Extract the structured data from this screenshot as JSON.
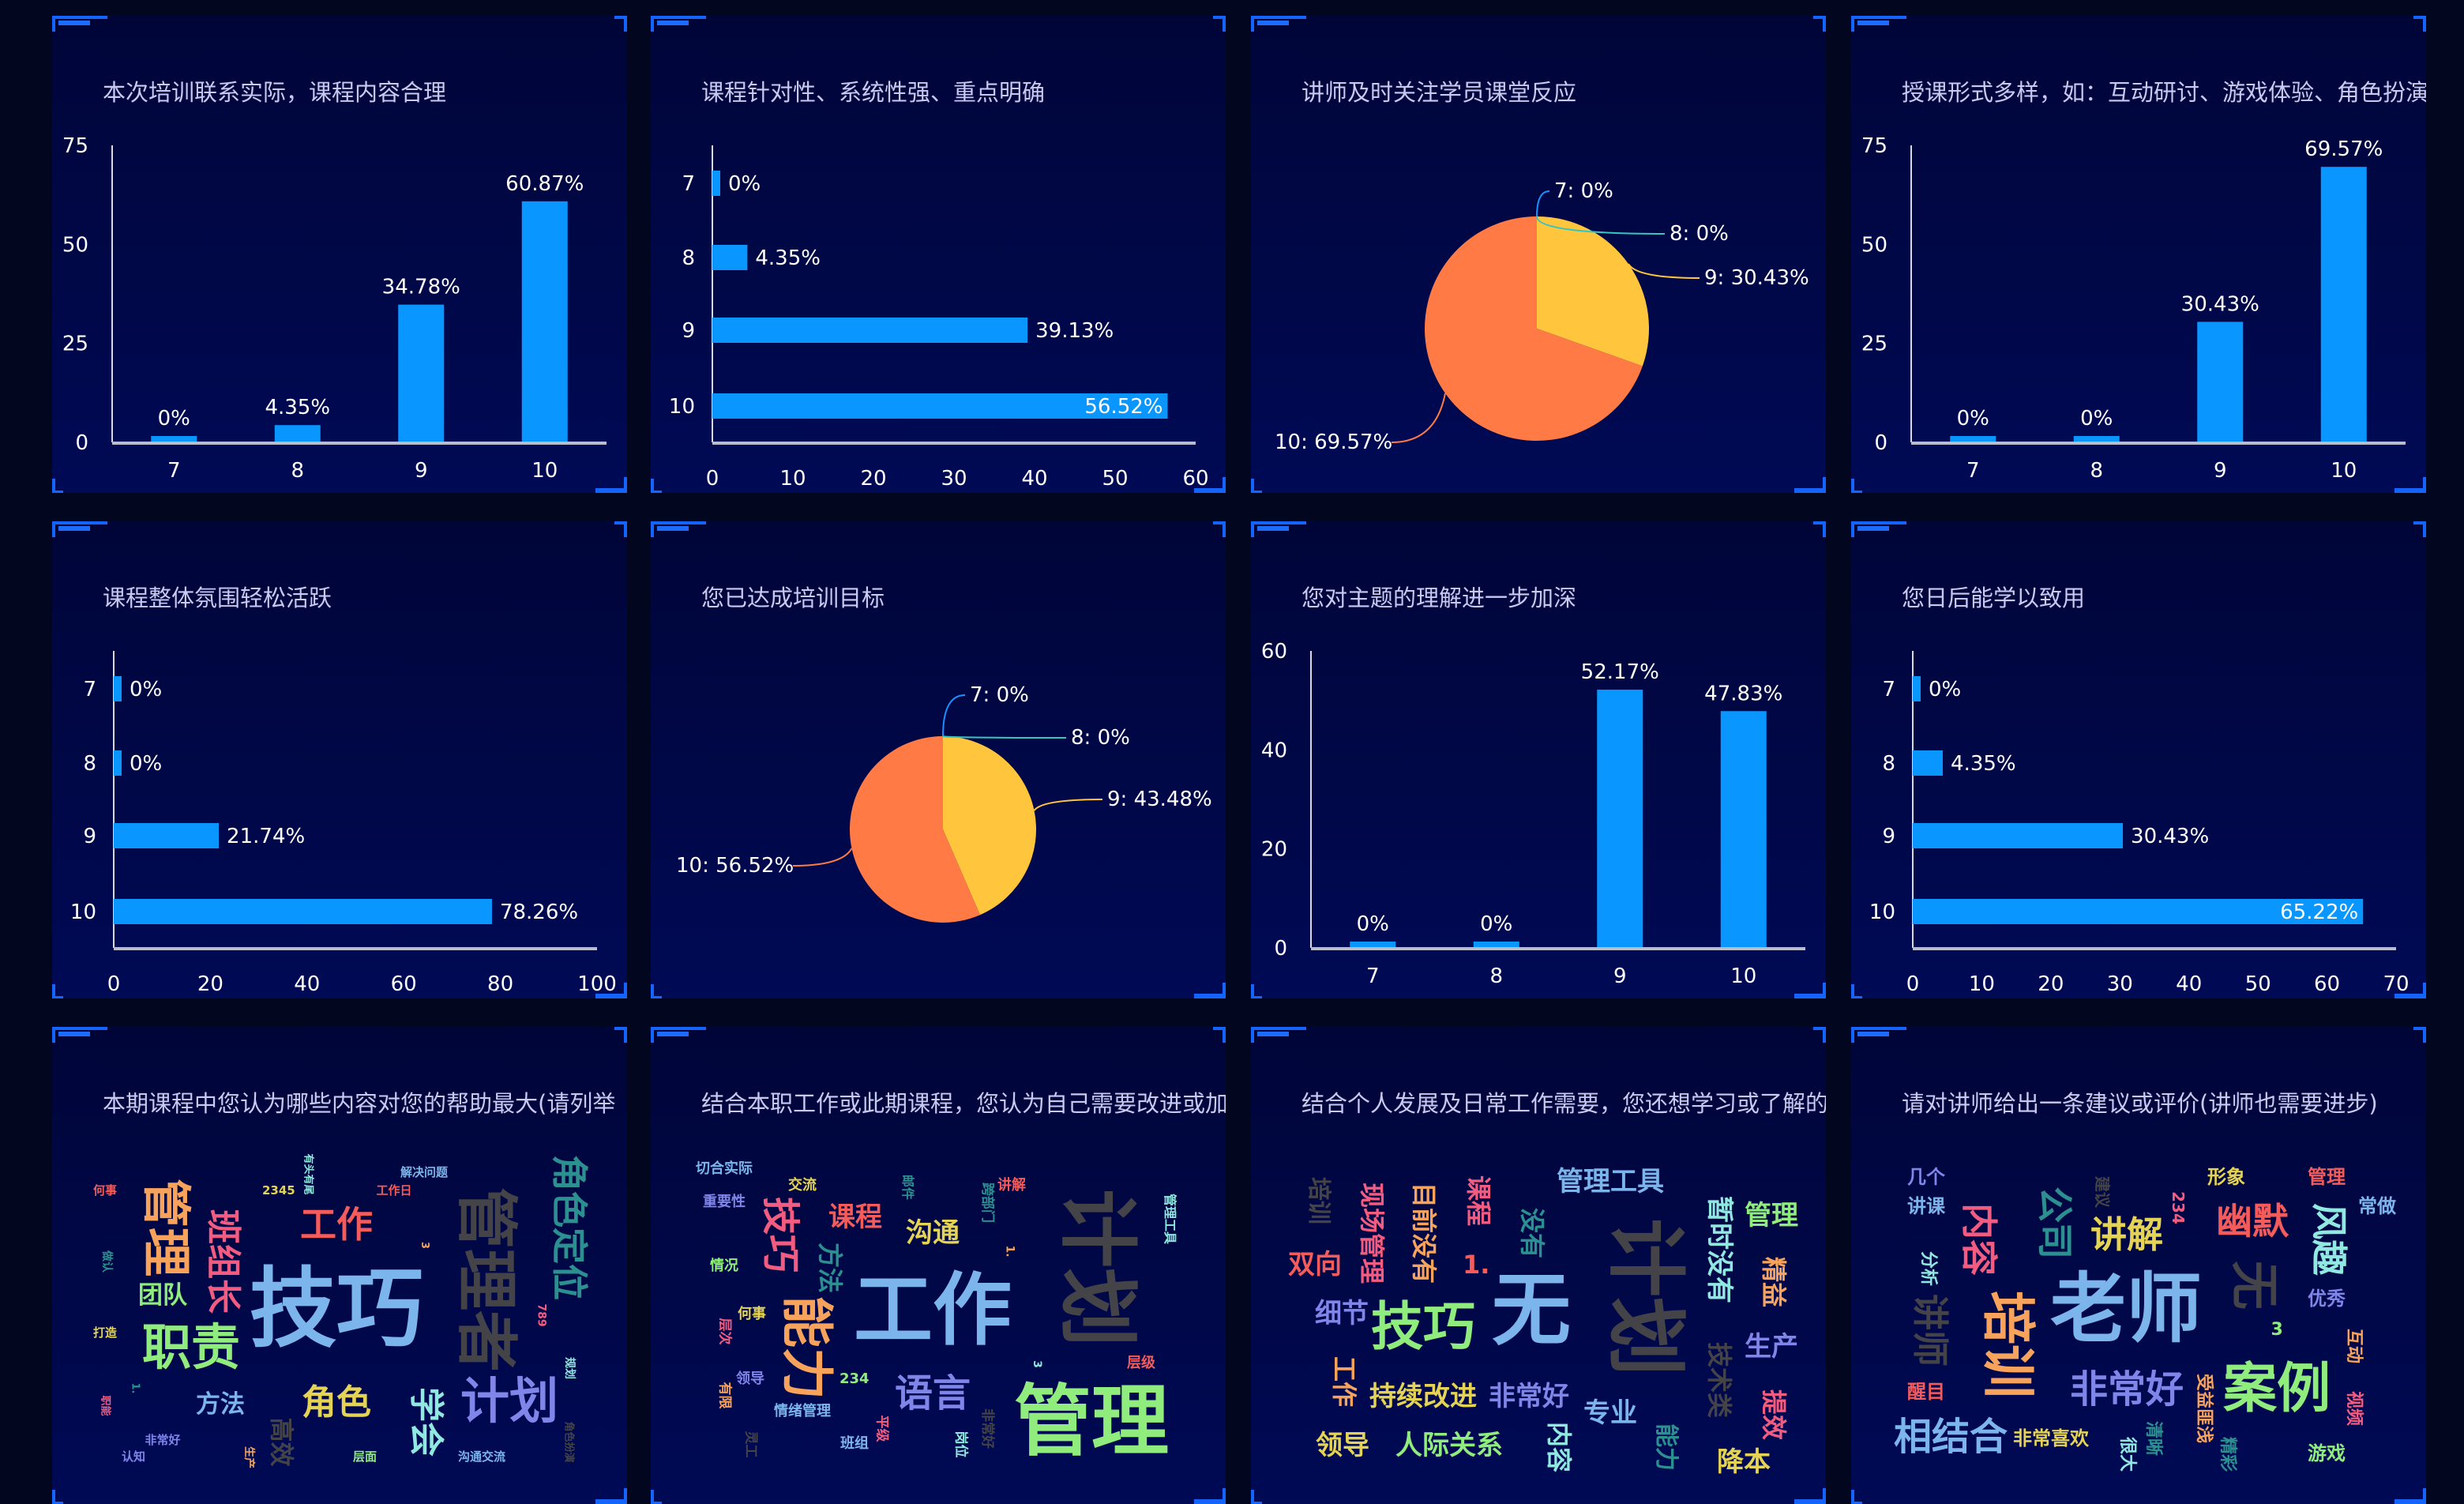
{
  "panels": [
    {
      "title": "本次培训联系实际，课程内容合理"
    },
    {
      "title": "课程针对性、系统性强、重点明确"
    },
    {
      "title": "讲师及时关注学员课堂反应"
    },
    {
      "title": "授课形式多样，如：互动研讨、游戏体验、角色扮演"
    },
    {
      "title": "课程整体氛围轻松活跃"
    },
    {
      "title": "您已达成培训目标"
    },
    {
      "title": "您对主题的理解进一步加深"
    },
    {
      "title": "您日后能学以致用"
    },
    {
      "title": "本期课程中您认为哪些内容对您的帮助最大(请列举"
    },
    {
      "title": "结合本职工作或此期课程，您认为自己需要改进或加"
    },
    {
      "title": "结合个人发展及日常工作需要，您还想学习或了解的"
    },
    {
      "title": "请对讲师给出一条建议或评价(讲师也需要进步)"
    }
  ],
  "colors": {
    "bar": "#0a96ff",
    "pie": {
      "7": "#1a90ff",
      "8": "#36c6c0",
      "9": "#ffc53d",
      "10": "#ff7a45"
    },
    "text": "#ffffff",
    "title": "#c9c9f2"
  },
  "chart_data": [
    {
      "type": "bar",
      "orientation": "vertical",
      "categories": [
        "7",
        "8",
        "9",
        "10"
      ],
      "values": [
        0,
        4.35,
        34.78,
        60.87
      ],
      "labels": [
        "0%",
        "4.35%",
        "34.78%",
        "60.87%"
      ],
      "ylim": [
        0,
        75
      ],
      "yticks": [
        "0",
        "25",
        "50",
        "75"
      ]
    },
    {
      "type": "bar",
      "orientation": "horizontal",
      "categories": [
        "7",
        "8",
        "9",
        "10"
      ],
      "values": [
        0,
        4.35,
        39.13,
        56.52
      ],
      "labels": [
        "0%",
        "4.35%",
        "39.13%",
        "56.52%"
      ],
      "xlim": [
        0,
        60
      ],
      "xticks": [
        "0",
        "10",
        "20",
        "30",
        "40",
        "50",
        "60"
      ]
    },
    {
      "type": "pie",
      "categories": [
        "7",
        "8",
        "9",
        "10"
      ],
      "values": [
        0,
        0,
        30.43,
        69.57
      ],
      "labels": [
        "7: 0%",
        "8: 0%",
        "9: 30.43%",
        "10: 69.57%"
      ]
    },
    {
      "type": "bar",
      "orientation": "vertical",
      "categories": [
        "7",
        "8",
        "9",
        "10"
      ],
      "values": [
        0,
        0,
        30.43,
        69.57
      ],
      "labels": [
        "0%",
        "0%",
        "30.43%",
        "69.57%"
      ],
      "ylim": [
        0,
        75
      ],
      "yticks": [
        "0",
        "25",
        "50",
        "75"
      ]
    },
    {
      "type": "bar",
      "orientation": "horizontal",
      "categories": [
        "7",
        "8",
        "9",
        "10"
      ],
      "values": [
        0,
        0,
        21.74,
        78.26
      ],
      "labels": [
        "0%",
        "0%",
        "21.74%",
        "78.26%"
      ],
      "xlim": [
        0,
        100
      ],
      "xticks": [
        "0",
        "20",
        "40",
        "60",
        "80",
        "100"
      ]
    },
    {
      "type": "pie",
      "categories": [
        "7",
        "8",
        "9",
        "10"
      ],
      "values": [
        0,
        0,
        43.48,
        56.52
      ],
      "labels": [
        "7: 0%",
        "8: 0%",
        "9: 43.48%",
        "10: 56.52%"
      ]
    },
    {
      "type": "bar",
      "orientation": "vertical",
      "categories": [
        "7",
        "8",
        "9",
        "10"
      ],
      "values": [
        0,
        0,
        52.17,
        47.83
      ],
      "labels": [
        "0%",
        "0%",
        "52.17%",
        "47.83%"
      ],
      "ylim": [
        0,
        60
      ],
      "yticks": [
        "0",
        "20",
        "40",
        "60"
      ]
    },
    {
      "type": "bar",
      "orientation": "horizontal",
      "categories": [
        "7",
        "8",
        "9",
        "10"
      ],
      "values": [
        0,
        4.35,
        30.43,
        65.22
      ],
      "labels": [
        "0%",
        "4.35%",
        "30.43%",
        "65.22%"
      ],
      "xlim": [
        0,
        70
      ],
      "xticks": [
        "0",
        "10",
        "20",
        "30",
        "40",
        "50",
        "60",
        "70"
      ]
    }
  ],
  "wordclouds": [
    {
      "words": [
        {
          "text": "技巧",
          "color": "#7cb5ec"
        },
        {
          "text": "管理者",
          "color": "#434348"
        },
        {
          "text": "角色定位",
          "color": "#2b908f"
        },
        {
          "text": "管理",
          "color": "#f7a35c"
        },
        {
          "text": "班组长",
          "color": "#f15c80"
        },
        {
          "text": "工作",
          "color": "#f45b5b"
        },
        {
          "text": "职责",
          "color": "#90ed7d"
        },
        {
          "text": "团队",
          "color": "#90ed7d"
        },
        {
          "text": "方法",
          "color": "#7cb5ec"
        },
        {
          "text": "角色",
          "color": "#e4d354"
        },
        {
          "text": "学会",
          "color": "#91e8e1"
        },
        {
          "text": "计划",
          "color": "#8085e9"
        },
        {
          "text": "高效",
          "color": "#434348"
        },
        {
          "text": "何事",
          "color": "#f45b5b"
        },
        {
          "text": "2345",
          "color": "#e4d354"
        },
        {
          "text": "有头有尾",
          "color": "#91e8e1"
        },
        {
          "text": "解决问题",
          "color": "#7cb5ec"
        },
        {
          "text": "工作日",
          "color": "#f45b5b"
        },
        {
          "text": "3",
          "color": "#f7a35c"
        },
        {
          "text": "做认",
          "color": "#2b908f"
        },
        {
          "text": "打造",
          "color": "#e4d354"
        },
        {
          "text": "789",
          "color": "#f15c80"
        },
        {
          "text": "规划",
          "color": "#91e8e1"
        },
        {
          "text": "1.",
          "color": "#2b908f"
        },
        {
          "text": "职能",
          "color": "#f15c80"
        },
        {
          "text": "非常好",
          "color": "#8085e9"
        },
        {
          "text": "认知",
          "color": "#8085e9"
        },
        {
          "text": "生产",
          "color": "#f7a35c"
        },
        {
          "text": "层面",
          "color": "#90ed7d"
        },
        {
          "text": "沟通交流",
          "color": "#7cb5ec"
        },
        {
          "text": "角色扮演",
          "color": "#434348"
        }
      ]
    },
    {
      "words": [
        {
          "text": "工作",
          "color": "#7cb5ec"
        },
        {
          "text": "计划",
          "color": "#434348"
        },
        {
          "text": "管理",
          "color": "#90ed7d"
        },
        {
          "text": "能力",
          "color": "#f7a35c"
        },
        {
          "text": "技巧",
          "color": "#f15c80"
        },
        {
          "text": "课程",
          "color": "#f45b5b"
        },
        {
          "text": "沟通",
          "color": "#e4d354"
        },
        {
          "text": "方法",
          "color": "#2b908f"
        },
        {
          "text": "语言",
          "color": "#8085e9"
        },
        {
          "text": "切合实际",
          "color": "#7cb5ec"
        },
        {
          "text": "交流",
          "color": "#e4d354"
        },
        {
          "text": "重要性",
          "color": "#8085e9"
        },
        {
          "text": "邮件",
          "color": "#2b908f"
        },
        {
          "text": "跨部门",
          "color": "#2b908f"
        },
        {
          "text": "讲解",
          "color": "#f45b5b"
        },
        {
          "text": "管理工具",
          "color": "#91e8e1"
        },
        {
          "text": "1.",
          "color": "#f7a35c"
        },
        {
          "text": "情况",
          "color": "#90ed7d"
        },
        {
          "text": "何事",
          "color": "#e4d354"
        },
        {
          "text": "层次",
          "color": "#f15c80"
        },
        {
          "text": "领导",
          "color": "#8085e9"
        },
        {
          "text": "有限",
          "color": "#f7a35c"
        },
        {
          "text": "234",
          "color": "#90ed7d"
        },
        {
          "text": "3",
          "color": "#91e8e1"
        },
        {
          "text": "层级",
          "color": "#f45b5b"
        },
        {
          "text": "情绪管理",
          "color": "#7cb5ec"
        },
        {
          "text": "平级",
          "color": "#f15c80"
        },
        {
          "text": "非常好",
          "color": "#434348"
        },
        {
          "text": "灵工",
          "color": "#434348"
        },
        {
          "text": "班组",
          "color": "#7cb5ec"
        },
        {
          "text": "岗位",
          "color": "#91e8e1"
        }
      ]
    },
    {
      "words": [
        {
          "text": "无",
          "color": "#7cb5ec"
        },
        {
          "text": "计划",
          "color": "#434348"
        },
        {
          "text": "技巧",
          "color": "#90ed7d"
        },
        {
          "text": "管理工具",
          "color": "#7cb5ec"
        },
        {
          "text": "管理",
          "color": "#90ed7d"
        },
        {
          "text": "暂时没有",
          "color": "#91e8e1"
        },
        {
          "text": "精益",
          "color": "#f7a35c"
        },
        {
          "text": "生产",
          "color": "#8085e9"
        },
        {
          "text": "技术类",
          "color": "#434348"
        },
        {
          "text": "提效",
          "color": "#f15c80"
        },
        {
          "text": "降本",
          "color": "#e4d354"
        },
        {
          "text": "能力",
          "color": "#2b908f"
        },
        {
          "text": "专业",
          "color": "#7cb5ec"
        },
        {
          "text": "内容",
          "color": "#91e8e1"
        },
        {
          "text": "非常好",
          "color": "#8085e9"
        },
        {
          "text": "持续改进",
          "color": "#e4d354"
        },
        {
          "text": "人际关系",
          "color": "#90ed7d"
        },
        {
          "text": "领导",
          "color": "#e4d354"
        },
        {
          "text": "工作",
          "color": "#f7a35c"
        },
        {
          "text": "细节",
          "color": "#8085e9"
        },
        {
          "text": "双向",
          "color": "#f45b5b"
        },
        {
          "text": "1.",
          "color": "#f45b5b"
        },
        {
          "text": "培训",
          "color": "#434348"
        },
        {
          "text": "现场管理",
          "color": "#f15c80"
        },
        {
          "text": "目前没有",
          "color": "#f7a35c"
        },
        {
          "text": "课程",
          "color": "#f15c80"
        },
        {
          "text": "没有",
          "color": "#2b908f"
        }
      ]
    },
    {
      "words": [
        {
          "text": "老师",
          "color": "#7cb5ec"
        },
        {
          "text": "培训",
          "color": "#f7a35c"
        },
        {
          "text": "案例",
          "color": "#90ed7d"
        },
        {
          "text": "无",
          "color": "#434348"
        },
        {
          "text": "讲师",
          "color": "#434348"
        },
        {
          "text": "非常好",
          "color": "#8085e9"
        },
        {
          "text": "相结合",
          "color": "#7cb5ec"
        },
        {
          "text": "幽默",
          "color": "#f45b5b"
        },
        {
          "text": "风趣",
          "color": "#91e8e1"
        },
        {
          "text": "讲解",
          "color": "#e4d354"
        },
        {
          "text": "内容",
          "color": "#f15c80"
        },
        {
          "text": "公司",
          "color": "#2b908f"
        },
        {
          "text": "几个",
          "color": "#8085e9"
        },
        {
          "text": "讲课",
          "color": "#7cb5ec"
        },
        {
          "text": "建议",
          "color": "#434348"
        },
        {
          "text": "234",
          "color": "#f15c80"
        },
        {
          "text": "形象",
          "color": "#e4d354"
        },
        {
          "text": "管理",
          "color": "#f45b5b"
        },
        {
          "text": "常做",
          "color": "#7cb5ec"
        },
        {
          "text": "分析",
          "color": "#91e8e1"
        },
        {
          "text": "优秀",
          "color": "#8085e9"
        },
        {
          "text": "3",
          "color": "#90ed7d"
        },
        {
          "text": "互动",
          "color": "#f7a35c"
        },
        {
          "text": "醒目",
          "color": "#f45b5b"
        },
        {
          "text": "受益匪浅",
          "color": "#f7a35c"
        },
        {
          "text": "视频",
          "color": "#f15c80"
        },
        {
          "text": "非常喜欢",
          "color": "#e4d354"
        },
        {
          "text": "清晰",
          "color": "#2b908f"
        },
        {
          "text": "很大",
          "color": "#91e8e1"
        },
        {
          "text": "精彩",
          "color": "#2b908f"
        },
        {
          "text": "游戏",
          "color": "#90ed7d"
        }
      ]
    }
  ]
}
